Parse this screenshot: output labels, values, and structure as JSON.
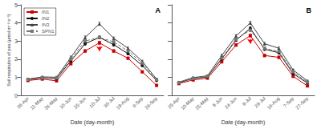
{
  "chart_data": [
    {
      "type": "line",
      "title": "A",
      "xlabel": "Date (day-month)",
      "ylabel": "Soil respiration of pea (μmol m⁻² s⁻¹)",
      "categories": [
        "26-Apr",
        "11-May",
        "26-May",
        "10-Jun",
        "25-Jun",
        "10-Jul",
        "30-Jul",
        "19-Aug",
        "8-Sep",
        "28-Sep"
      ],
      "series": [
        {
          "name": "IN1",
          "color": "#cc0000",
          "marker": "square",
          "line_style": "solid",
          "values": [
            0.82,
            0.9,
            0.8,
            1.75,
            2.45,
            2.9,
            2.45,
            2.05,
            1.3,
            0.55
          ],
          "errors": [
            0.04,
            0.04,
            0.04,
            0.06,
            0.07,
            0.09,
            0.07,
            0.06,
            0.05,
            0.03
          ]
        },
        {
          "name": "IN2",
          "color": "#111111",
          "marker": "circle",
          "line_style": "solid",
          "values": [
            0.87,
            0.97,
            0.92,
            1.9,
            2.85,
            3.2,
            2.8,
            2.3,
            1.65,
            0.82
          ],
          "errors": [
            0.04,
            0.04,
            0.04,
            0.06,
            0.08,
            0.08,
            0.08,
            0.06,
            0.05,
            0.03
          ]
        },
        {
          "name": "IN3",
          "color": "#444444",
          "marker": "triangle",
          "line_style": "solid",
          "values": [
            0.9,
            1.02,
            1.0,
            2.1,
            3.2,
            3.95,
            3.15,
            2.6,
            1.88,
            0.9
          ],
          "errors": [
            0.04,
            0.04,
            0.05,
            0.07,
            0.08,
            0.09,
            0.08,
            0.07,
            0.06,
            0.04
          ]
        },
        {
          "name": "SPN1",
          "color": "#777777",
          "marker": "square",
          "line_style": "dashed",
          "values": [
            0.88,
            0.97,
            0.96,
            2.0,
            3.0,
            3.2,
            2.95,
            2.45,
            1.78,
            0.87
          ],
          "errors": [
            0.04,
            0.04,
            0.05,
            0.06,
            0.08,
            0.08,
            0.08,
            0.06,
            0.05,
            0.03
          ]
        }
      ],
      "arrow": {
        "category": "10-Jul",
        "from": 2.72,
        "to": 2.45,
        "color": "red"
      },
      "ylim": [
        0,
        5
      ],
      "yticks": [
        0,
        1,
        2,
        3,
        4,
        5
      ],
      "grid": false,
      "legend": "upper left"
    },
    {
      "type": "line",
      "title": "B",
      "xlabel": "Date (day-month)",
      "categories": [
        "25-Apr",
        "10-May",
        "25-May",
        "9-Jun",
        "24-Jun",
        "9-Jul",
        "29-Jul",
        "18-Aug",
        "7-Sep",
        "27-Sep"
      ],
      "series": [
        {
          "name": "IN1",
          "color": "#cc0000",
          "marker": "square",
          "line_style": "solid",
          "values": [
            0.65,
            0.85,
            0.95,
            1.85,
            2.78,
            3.3,
            2.2,
            2.1,
            1.05,
            0.52
          ],
          "errors": [
            0.03,
            0.04,
            0.04,
            0.06,
            0.07,
            0.08,
            0.07,
            0.06,
            0.04,
            0.03
          ]
        },
        {
          "name": "IN2",
          "color": "#111111",
          "marker": "circle",
          "line_style": "solid",
          "values": [
            0.7,
            0.93,
            1.02,
            2.0,
            3.05,
            3.7,
            2.55,
            2.35,
            1.2,
            0.68
          ],
          "errors": [
            0.03,
            0.04,
            0.04,
            0.06,
            0.07,
            0.09,
            0.07,
            0.06,
            0.04,
            0.03
          ]
        },
        {
          "name": "IN3",
          "color": "#444444",
          "marker": "triangle",
          "line_style": "solid",
          "values": [
            0.73,
            0.98,
            1.08,
            2.2,
            3.28,
            4.0,
            2.85,
            2.6,
            1.4,
            0.8
          ],
          "errors": [
            0.03,
            0.04,
            0.05,
            0.07,
            0.08,
            0.09,
            0.08,
            0.07,
            0.05,
            0.04
          ]
        },
        {
          "name": "SPN1",
          "color": "#777777",
          "marker": "square",
          "line_style": "dashed",
          "values": [
            0.7,
            0.93,
            1.05,
            2.05,
            3.1,
            3.6,
            2.6,
            2.42,
            1.3,
            0.73
          ],
          "errors": [
            0.03,
            0.04,
            0.04,
            0.06,
            0.07,
            0.08,
            0.07,
            0.06,
            0.04,
            0.03
          ]
        }
      ],
      "arrow": {
        "category": "9-Jul",
        "from": 3.12,
        "to": 2.85,
        "color": "red"
      },
      "ylim": [
        0,
        5
      ],
      "yticks": [
        0,
        1,
        2,
        3,
        4,
        5
      ],
      "grid": false,
      "tick_labels": "x"
    }
  ]
}
